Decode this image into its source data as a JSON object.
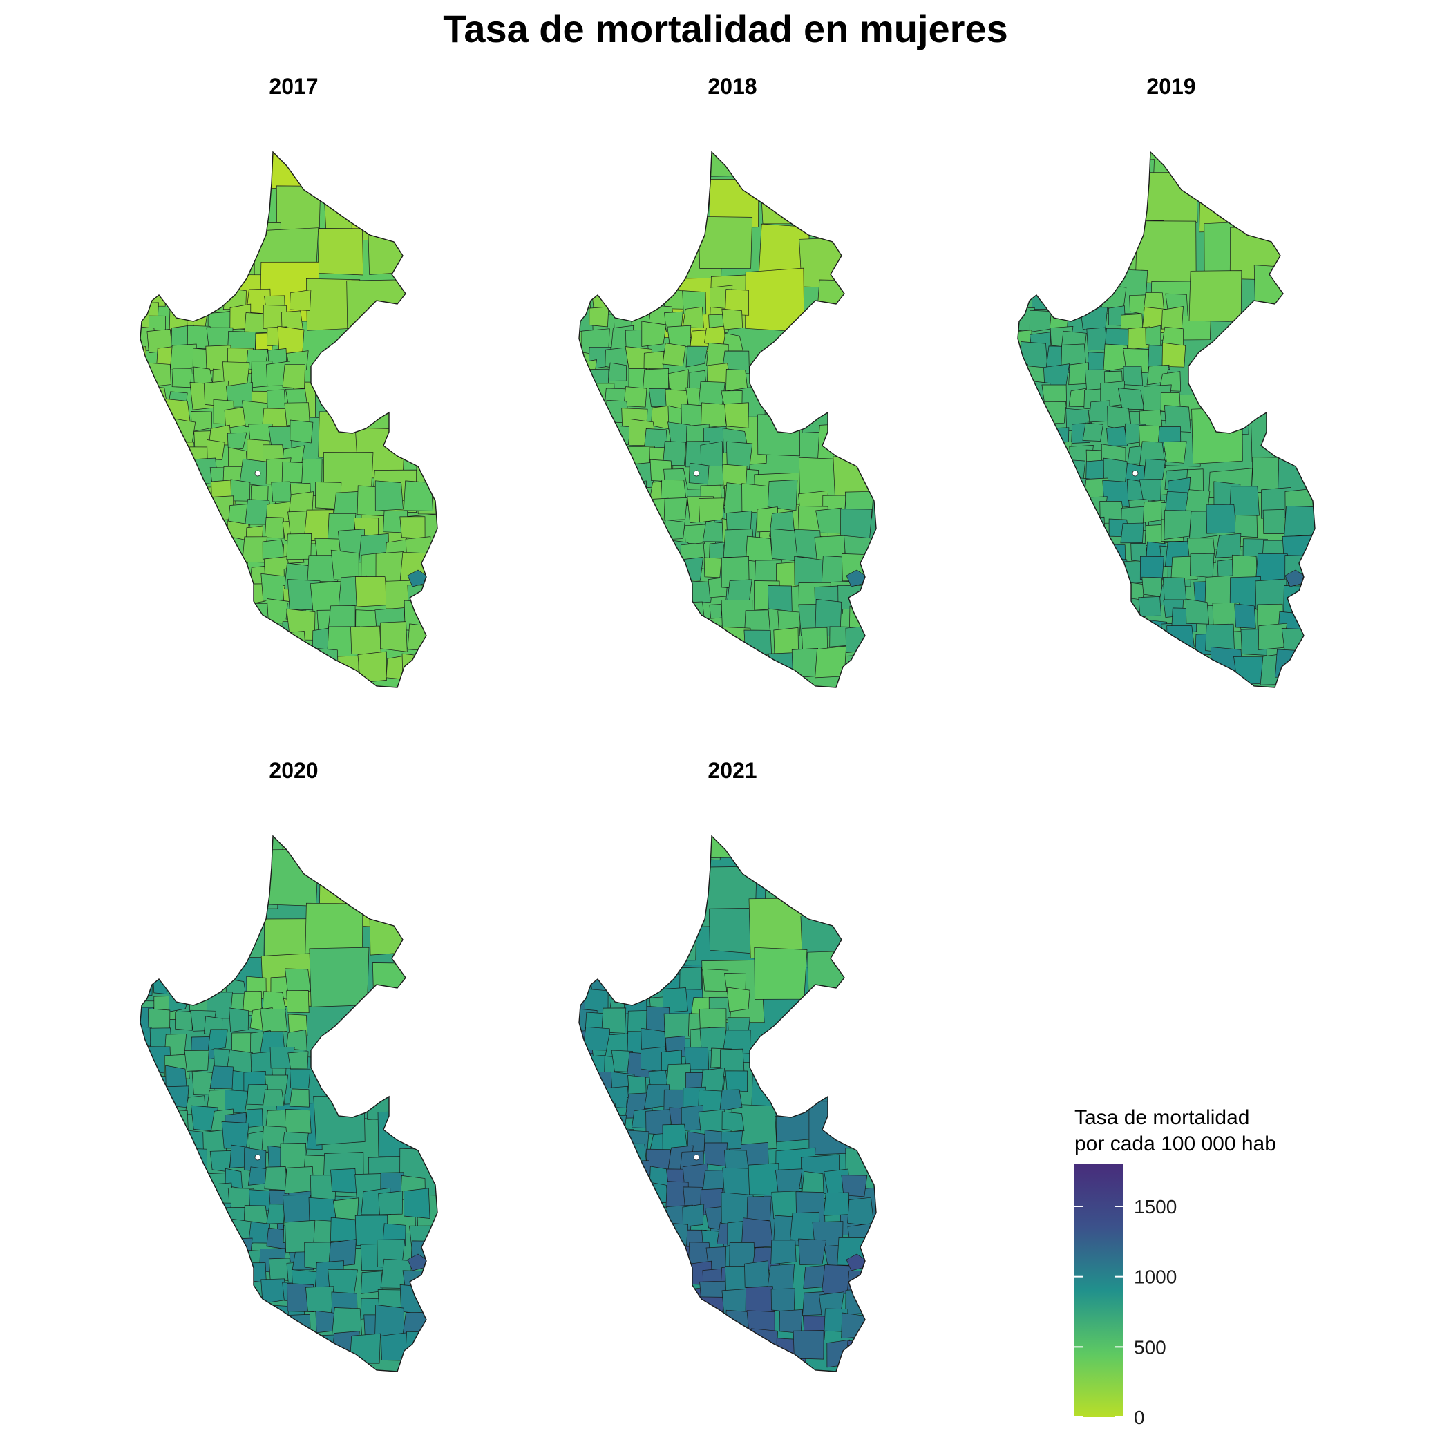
{
  "title": "Tasa de mortalidad en mujeres",
  "panels": [
    {
      "year": "2017",
      "level": 0.3
    },
    {
      "year": "2018",
      "level": 0.34
    },
    {
      "year": "2019",
      "level": 0.4
    },
    {
      "year": "2020",
      "level": 0.46
    },
    {
      "year": "2021",
      "level": 0.52
    }
  ],
  "legend": {
    "title_line1": "Tasa de mortalidad",
    "title_line2": "por cada 100 000 hab",
    "min": 0,
    "max": 1800,
    "ticks": [
      "0",
      "500",
      "1000",
      "1500"
    ],
    "tick_values": [
      0,
      500,
      1000,
      1500
    ],
    "palette": [
      "#b8de29",
      "#5ec962",
      "#21918c",
      "#3b528b",
      "#472d7b"
    ]
  }
}
